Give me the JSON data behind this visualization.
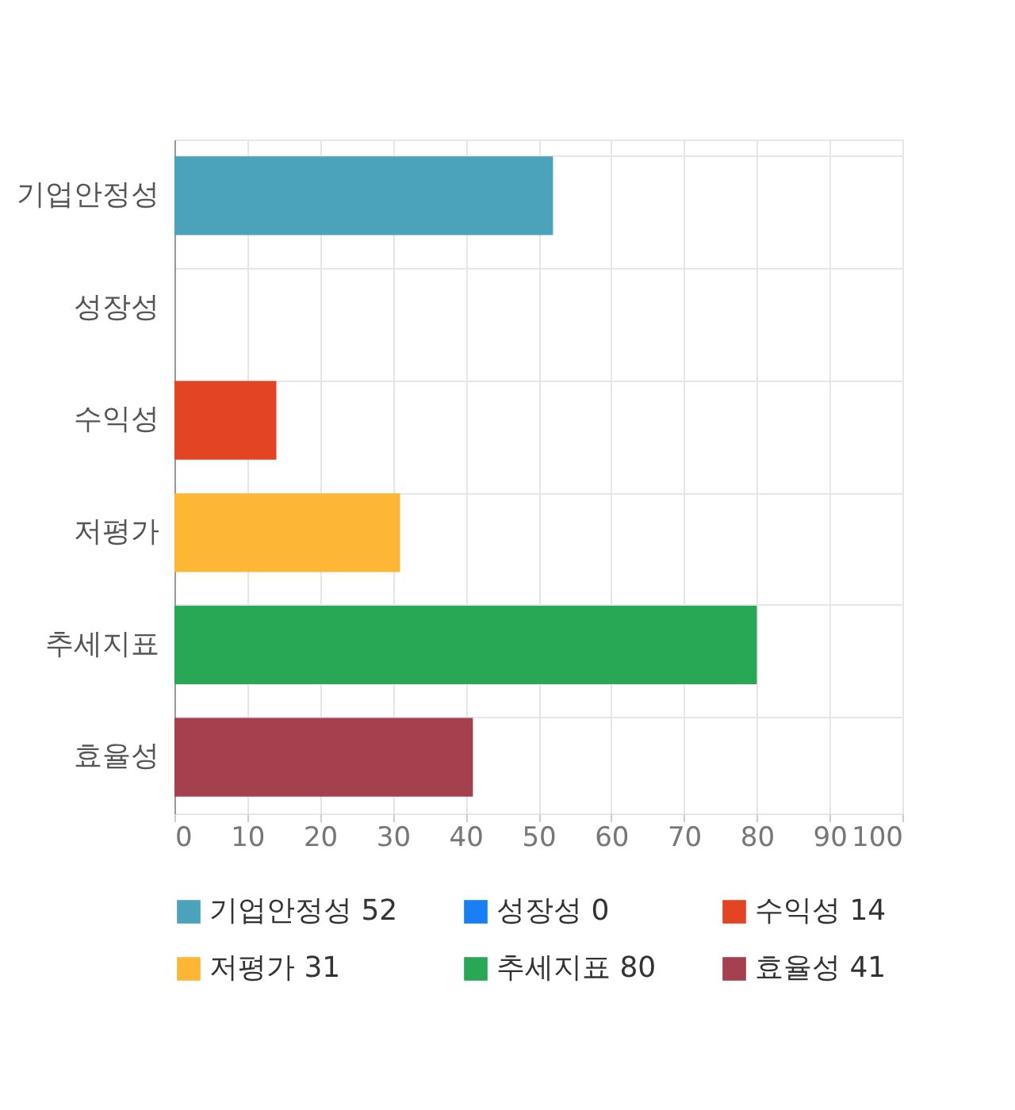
{
  "chart_data": {
    "type": "bar",
    "orientation": "horizontal",
    "stacked": true,
    "categories": [
      "기업안정성",
      "성장성",
      "수익성",
      "저평가",
      "추세지표",
      "효율성"
    ],
    "series": [
      {
        "name": "기업안정성 52",
        "color": "#4aa3bb",
        "values": [
          52,
          null,
          null,
          null,
          null,
          null
        ]
      },
      {
        "name": "성장성 0",
        "color": "#1a7ef5",
        "values": [
          null,
          0,
          null,
          null,
          null,
          null
        ]
      },
      {
        "name": "수익성 14",
        "color": "#e34524",
        "values": [
          null,
          null,
          14,
          null,
          null,
          null
        ]
      },
      {
        "name": "저평가 31",
        "color": "#fdb734",
        "values": [
          null,
          null,
          null,
          31,
          null,
          null
        ]
      },
      {
        "name": "추세지표 80",
        "color": "#28a855",
        "values": [
          null,
          null,
          null,
          null,
          80,
          null
        ]
      },
      {
        "name": "효율성 41",
        "color": "#a5404f",
        "values": [
          null,
          null,
          null,
          null,
          null,
          41
        ]
      }
    ],
    "xlim": [
      0,
      100
    ],
    "xticks": [
      0,
      10,
      20,
      30,
      40,
      50,
      60,
      70,
      80,
      90,
      100
    ],
    "grid": true,
    "legend": "bottom"
  }
}
